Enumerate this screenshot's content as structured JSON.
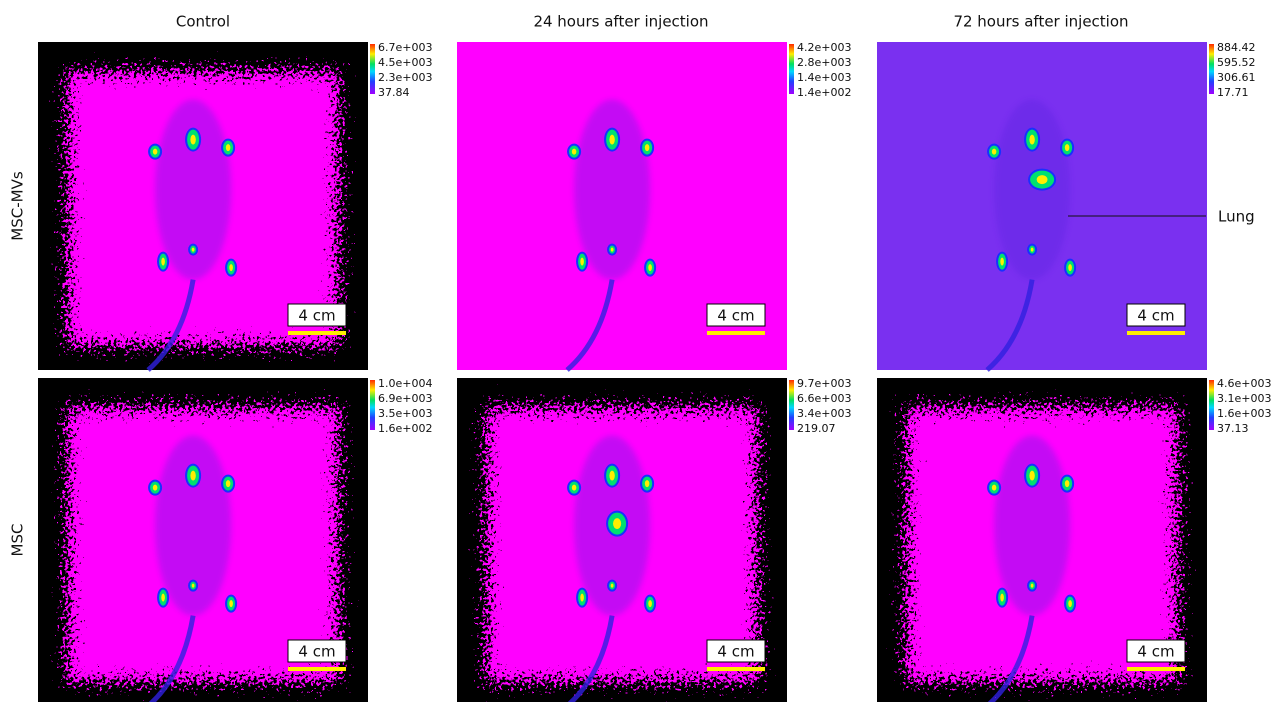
{
  "columns": [
    "Control",
    "24 hours after injection",
    "72 hours after injection"
  ],
  "rows": [
    "MSC-MVs",
    "MSC"
  ],
  "panels": [
    [
      {
        "colorbar": [
          "6.7e+003",
          "4.5e+003",
          "2.3e+003",
          "37.84"
        ],
        "scale_bar": "4 cm"
      },
      {
        "colorbar": [
          "4.2e+003",
          "2.8e+003",
          "1.4e+003",
          "1.4e+002"
        ],
        "scale_bar": "4 cm"
      },
      {
        "colorbar": [
          "884.42",
          "595.52",
          "306.61",
          "17.71"
        ],
        "scale_bar": "4 cm"
      }
    ],
    [
      {
        "colorbar": [
          "1.0e+004",
          "6.9e+003",
          "3.5e+003",
          "1.6e+002"
        ],
        "scale_bar": "4 cm"
      },
      {
        "colorbar": [
          "9.7e+003",
          "6.6e+003",
          "3.4e+003",
          "219.07"
        ],
        "scale_bar": "4 cm"
      },
      {
        "colorbar": [
          "4.6e+003",
          "3.1e+003",
          "1.6e+003",
          "37.13"
        ],
        "scale_bar": "4 cm"
      }
    ]
  ],
  "annotation": "Lung"
}
